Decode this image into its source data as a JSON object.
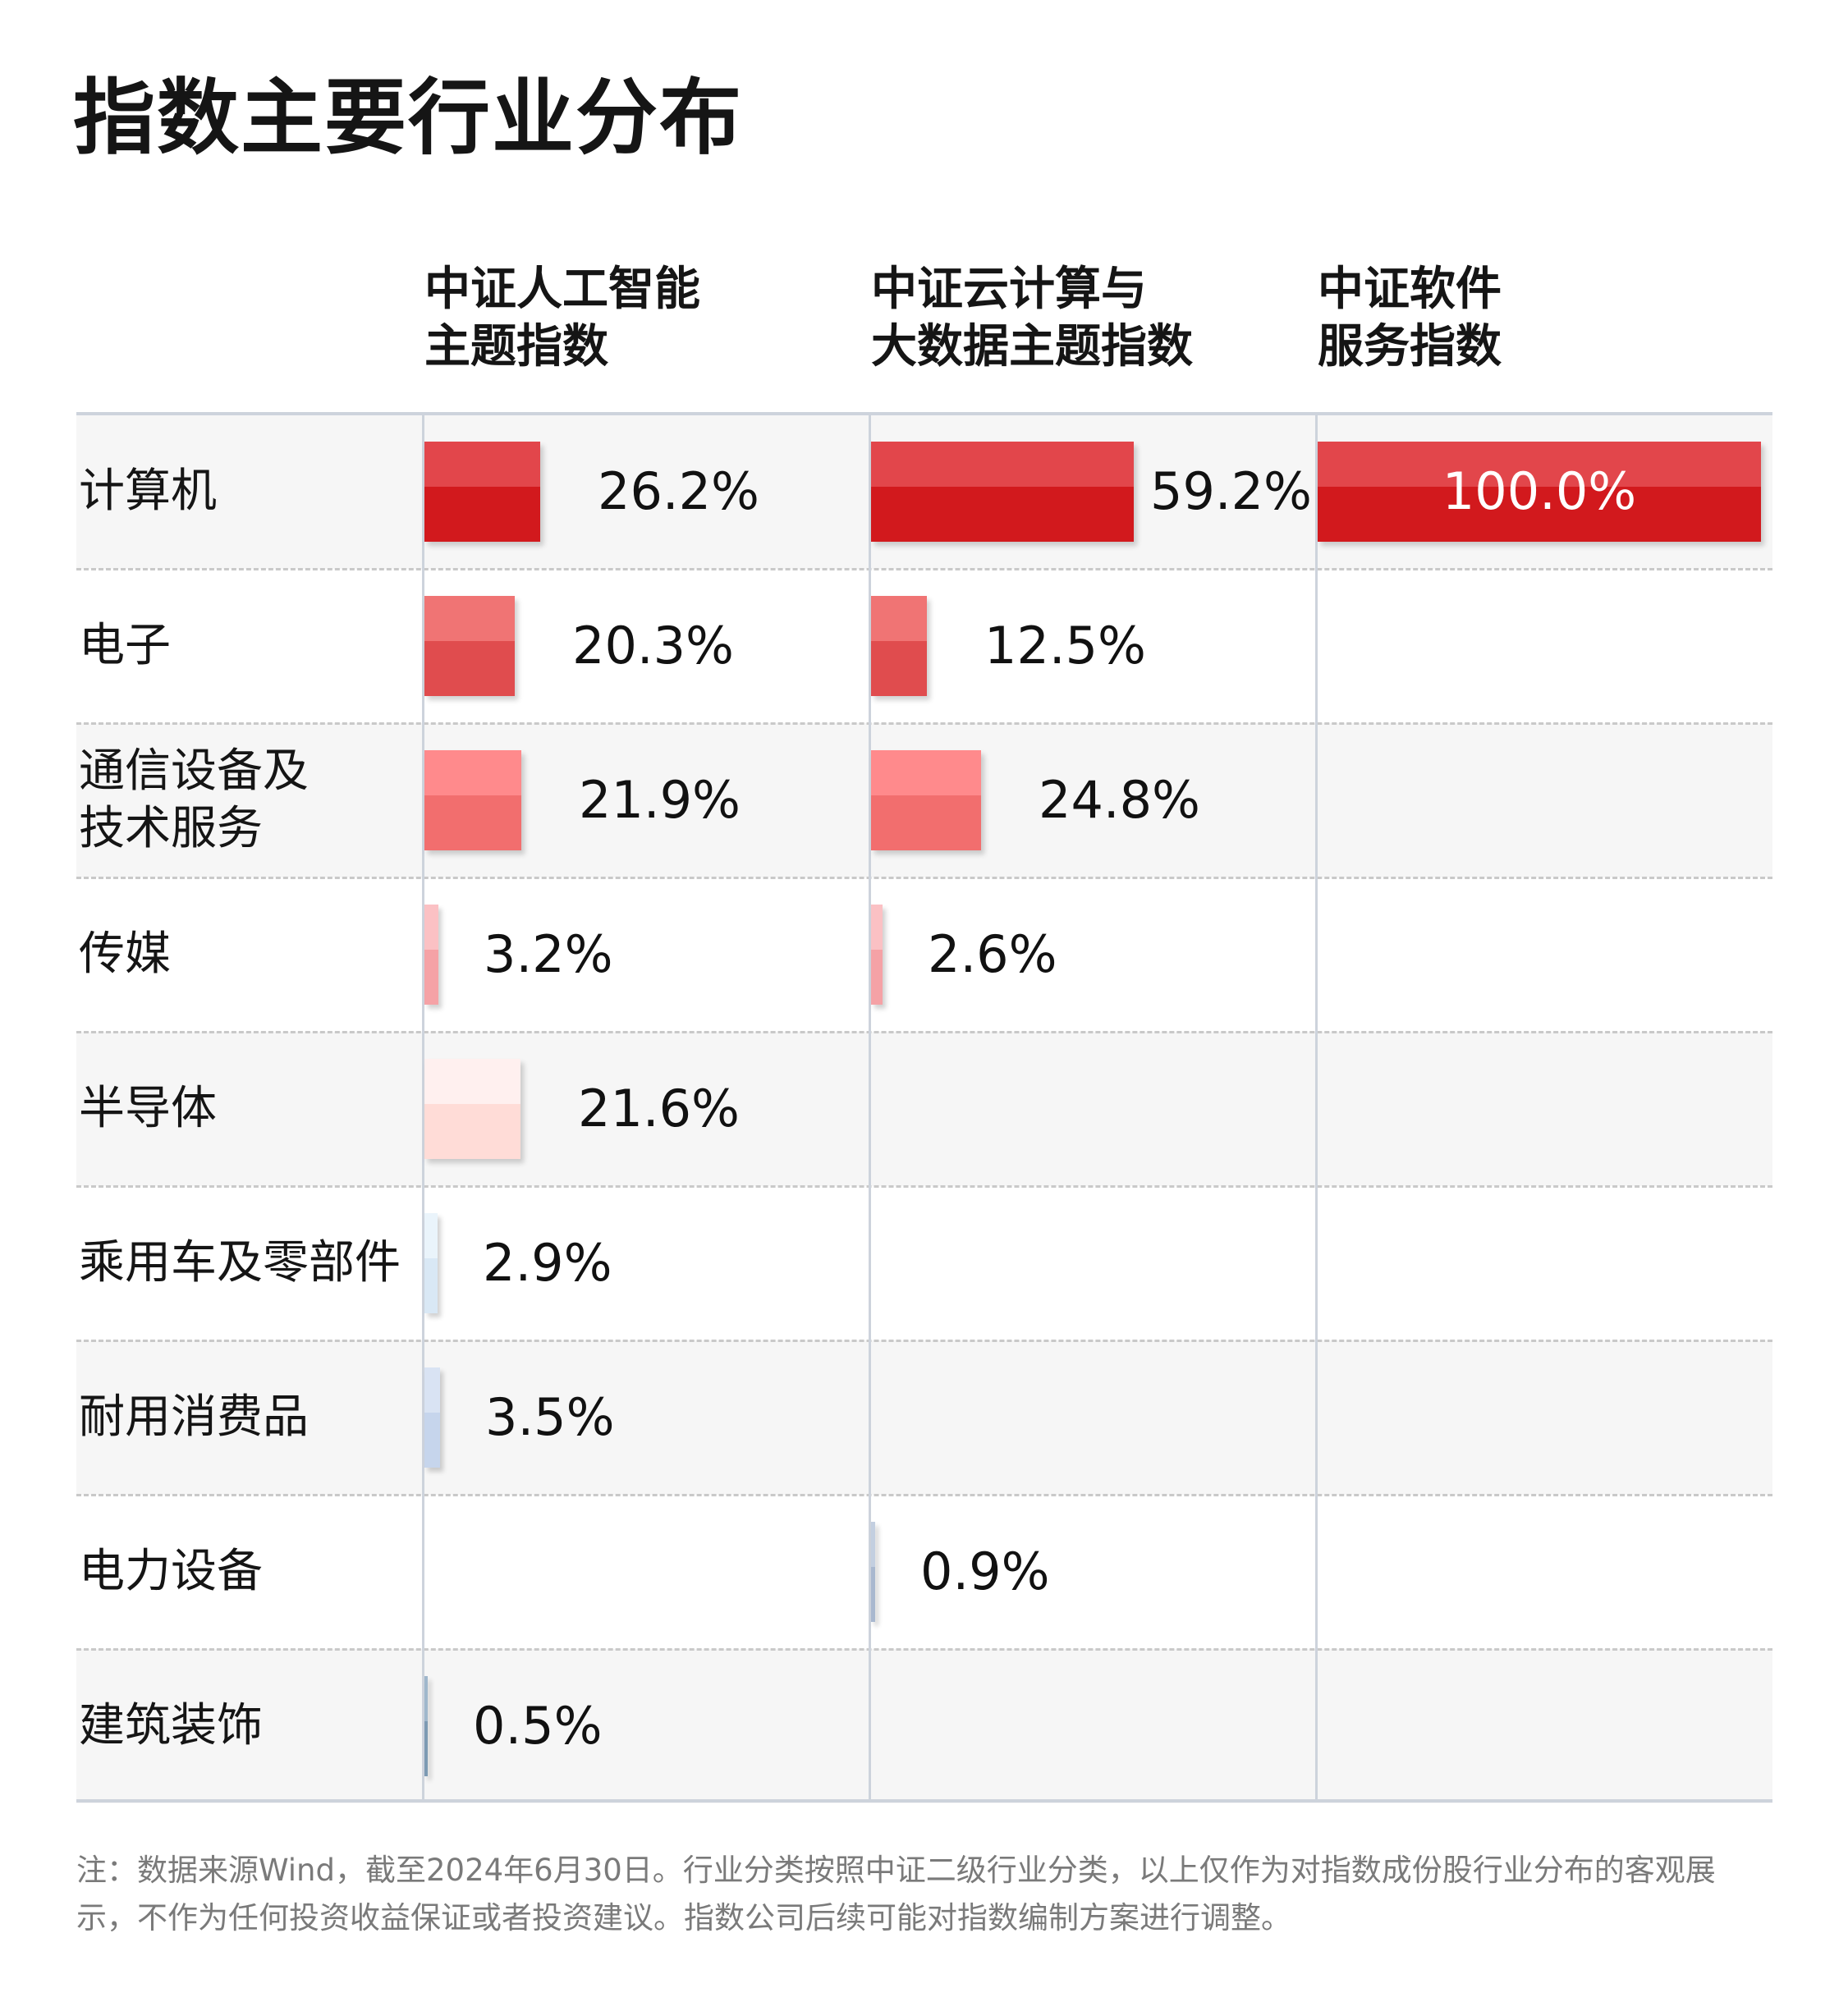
{
  "title": "指数主要行业分布",
  "note": "注：数据来源Wind，截至2024年6月30日。行业分类按照中证二级行业分类，以上仅作为对指数成份股行业分布的客观展示，不作为任何投资收益保证或者投资建议。指数公司后续可能对指数编制方案进行调整。",
  "chart_data": {
    "type": "bar",
    "orientation": "horizontal",
    "value_unit": "%",
    "categories": [
      "计算机",
      "电子",
      "通信设备及技术服务",
      "传媒",
      "半导体",
      "乘用车及零部件",
      "耐用消费品",
      "电力设备",
      "建筑装饰"
    ],
    "category_lines": [
      [
        "计算机"
      ],
      [
        "电子"
      ],
      [
        "通信设备及",
        "技术服务"
      ],
      [
        "传媒"
      ],
      [
        "半导体"
      ],
      [
        "乘用车及零部件"
      ],
      [
        "耐用消费品"
      ],
      [
        "电力设备"
      ],
      [
        "建筑装饰"
      ]
    ],
    "series": [
      {
        "name": "中证人工智能主题指数",
        "name_lines": [
          "中证人工智能",
          "主题指数"
        ],
        "values": [
          26.2,
          20.3,
          21.9,
          3.2,
          21.6,
          2.9,
          3.5,
          null,
          0.5
        ],
        "labels": [
          "26.2%",
          "20.3%",
          "21.9%",
          "3.2%",
          "21.6%",
          "2.9%",
          "3.5%",
          "",
          "0.5%"
        ]
      },
      {
        "name": "中证云计算与大数据主题指数",
        "name_lines": [
          "中证云计算与",
          "大数据主题指数"
        ],
        "values": [
          59.2,
          12.5,
          24.8,
          2.6,
          null,
          null,
          null,
          0.9,
          null
        ],
        "labels": [
          "59.2%",
          "12.5%",
          "24.8%",
          "2.6%",
          "",
          "",
          "",
          "0.9%",
          ""
        ]
      },
      {
        "name": "中证软件服务指数",
        "name_lines": [
          "中证软件",
          "服务指数"
        ],
        "values": [
          100.0,
          null,
          null,
          null,
          null,
          null,
          null,
          null,
          null
        ],
        "labels": [
          "100.0%",
          "",
          "",
          "",
          "",
          "",
          "",
          "",
          ""
        ]
      }
    ],
    "category_colors": [
      [
        "#e2464b",
        "#d2191d"
      ],
      [
        "#f07474",
        "#e04c4e"
      ],
      [
        "#ff8a8c",
        "#f26e6e"
      ],
      [
        "#fbc1c4",
        "#f5a2a6"
      ],
      [
        "#fff0ef",
        "#ffdcd7"
      ],
      [
        "#eaf4fb",
        "#d9e8f5"
      ],
      [
        "#d9e3f3",
        "#c6d5ec"
      ],
      [
        "#c3cfe0",
        "#a9b8cf"
      ],
      [
        "#9fb7cc",
        "#7d9ab3"
      ]
    ],
    "xlim": [
      0,
      100
    ],
    "legend": "none",
    "grid": false
  }
}
